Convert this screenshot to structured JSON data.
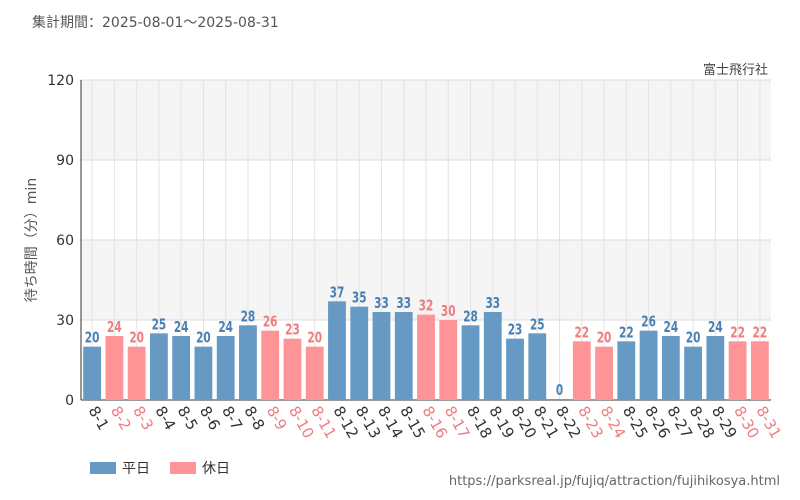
{
  "header": {
    "period": "集計期間：2025-08-01〜2025-08-31"
  },
  "colors": {
    "weekday": "#6699c4",
    "holiday": "#ff9496",
    "weekday_text": "#4a80b4",
    "holiday_text": "#f07c80"
  },
  "legend": {
    "weekday_label": "平日",
    "holiday_label": "休日"
  },
  "footer": {
    "url": "https://parksreal.jp/fujiq/attraction/fujihikosya.html"
  },
  "chart_data": {
    "type": "bar",
    "title": "富士飛行社",
    "ylabel": "待ち時間（分）min",
    "xlabel": "",
    "ylim": [
      0,
      120
    ],
    "yticks": [
      0,
      30,
      60,
      90,
      120
    ],
    "grid": true,
    "legend_position": "bottom-left",
    "categories": [
      "8-1",
      "8-2",
      "8-3",
      "8-4",
      "8-5",
      "8-6",
      "8-7",
      "8-8",
      "8-9",
      "8-10",
      "8-11",
      "8-12",
      "8-13",
      "8-14",
      "8-15",
      "8-16",
      "8-17",
      "8-18",
      "8-19",
      "8-20",
      "8-21",
      "8-22",
      "8-23",
      "8-24",
      "8-25",
      "8-26",
      "8-27",
      "8-28",
      "8-29",
      "8-30",
      "8-31"
    ],
    "values": [
      20,
      24,
      20,
      25,
      24,
      20,
      24,
      28,
      26,
      23,
      20,
      37,
      35,
      33,
      33,
      32,
      30,
      28,
      33,
      23,
      25,
      0,
      22,
      20,
      22,
      26,
      24,
      20,
      24,
      22,
      22
    ],
    "day_type": [
      "weekday",
      "holiday",
      "holiday",
      "weekday",
      "weekday",
      "weekday",
      "weekday",
      "weekday",
      "holiday",
      "holiday",
      "holiday",
      "weekday",
      "weekday",
      "weekday",
      "weekday",
      "holiday",
      "holiday",
      "weekday",
      "weekday",
      "weekday",
      "weekday",
      "weekday",
      "holiday",
      "holiday",
      "weekday",
      "weekday",
      "weekday",
      "weekday",
      "weekday",
      "holiday",
      "holiday"
    ]
  }
}
